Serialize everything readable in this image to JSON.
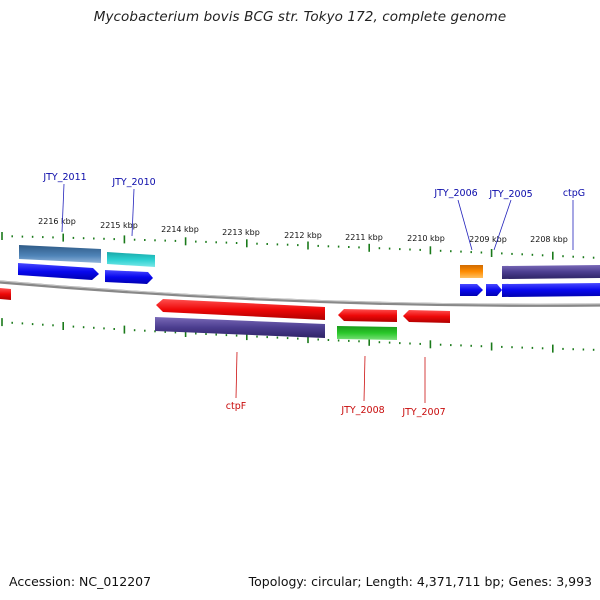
{
  "title": "Mycobacterium bovis BCG str. Tokyo 172, complete genome",
  "footer": {
    "accession": "Accession: NC_012207",
    "summary": "Topology: circular; Length: 4,371,711 bp; Genes: 3,993"
  },
  "kbp_labels": [
    "2216 kbp",
    "2215 kbp",
    "2214 kbp",
    "2213 kbp",
    "2212 kbp",
    "2211 kbp",
    "2210 kbp",
    "2209 kbp",
    "2208 kbp"
  ],
  "gene_labels_top": [
    "JTY_2011",
    "JTY_2010",
    "JTY_2006",
    "JTY_2005",
    "ctpG"
  ],
  "gene_labels_bottom": [
    "ctpF",
    "JTY_2008",
    "JTY_2007"
  ],
  "colors": {
    "forward_cds": "#0a0aee",
    "reverse_cds": "#e80808",
    "label_forward": "#0a0aaa",
    "label_reverse": "#c80a0a",
    "tick": "#1a7a1a",
    "backbone": "#777777"
  }
}
